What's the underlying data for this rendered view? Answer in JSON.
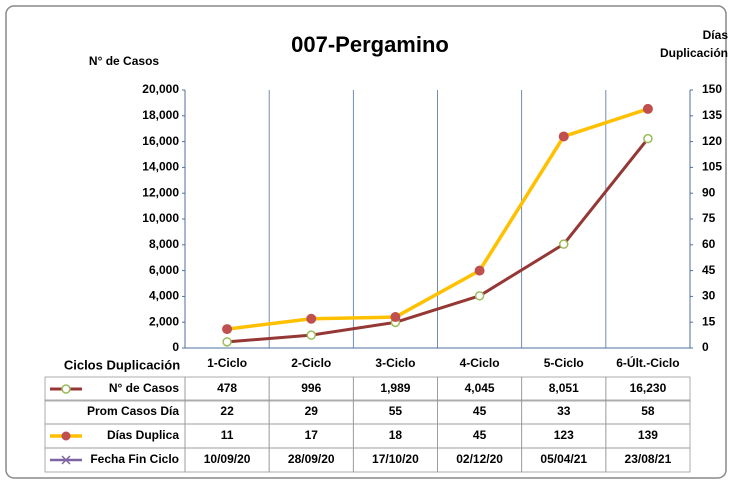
{
  "chart_data": {
    "type": "line",
    "title": "007-Pergamino",
    "y_label": "N° de Casos",
    "y2_label": "Días Duplicación",
    "table_header": "Ciclos Duplicación",
    "categories": [
      "1-Ciclo",
      "2-Ciclo",
      "3-Ciclo",
      "4-Ciclo",
      "5-Ciclo",
      "6-Últ.-Ciclo"
    ],
    "ylim": [
      0,
      20000
    ],
    "yticks": [
      0,
      {
        "value": 2000,
        "label": "2,000"
      },
      {
        "value": 4000,
        "label": "4,000"
      },
      {
        "value": 6000,
        "label": "6,000"
      },
      {
        "value": 8000,
        "label": "8,000"
      },
      {
        "value": 10000,
        "label": "10,000"
      },
      {
        "value": 12000,
        "label": "12,000"
      },
      {
        "value": 14000,
        "label": "14,000"
      },
      {
        "value": 16000,
        "label": "16,000"
      },
      {
        "value": 18000,
        "label": "18,000"
      },
      {
        "value": 20000,
        "label": "20,000"
      }
    ],
    "y2lim": [
      0,
      150
    ],
    "y2ticks": [
      0,
      15,
      30,
      45,
      60,
      75,
      90,
      105,
      120,
      135,
      150
    ],
    "series": [
      {
        "name": "N° de Casos",
        "color": "#953735",
        "marker_color": "#9bbb59",
        "values": [
          478,
          996,
          1989,
          4045,
          8051,
          16230
        ],
        "value_labels": [
          "478",
          "996",
          "1,989",
          "4,045",
          "8,051",
          "16,230"
        ]
      },
      {
        "name": "Días Duplica",
        "color": "#ffc000",
        "marker_color": "#c0504d",
        "axis": "y2",
        "values": [
          11,
          17,
          18,
          45,
          123,
          139
        ]
      }
    ],
    "table_rows": [
      {
        "name": "Prom Casos Día",
        "values": [
          22,
          29,
          55,
          45,
          33,
          58
        ]
      },
      {
        "name": "Fecha Fin Ciclo",
        "color": "#8064a2",
        "values": [
          "10/09/20",
          "28/09/20",
          "17/10/20",
          "02/12/20",
          "05/04/21",
          "23/08/21"
        ]
      }
    ]
  }
}
